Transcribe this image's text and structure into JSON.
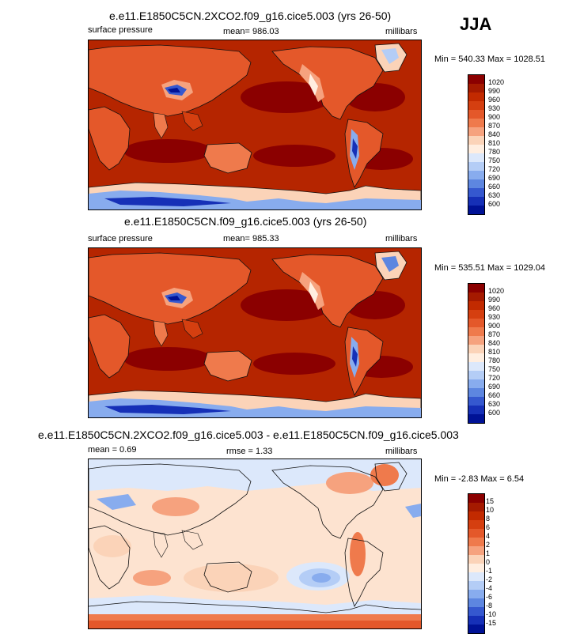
{
  "season": "JJA",
  "panels": [
    {
      "id": "p1",
      "title": "e.e11.E1850C5CN.2XCO2.f09_g16.cice5.003 (yrs 26-50)",
      "left_label": "surface pressure",
      "center_label": "mean= 986.03",
      "right_label": "millibars",
      "minmax": "Min = 540.33 Max = 1028.51",
      "levels": [
        "1020",
        "990",
        "960",
        "930",
        "900",
        "870",
        "840",
        "810",
        "780",
        "750",
        "720",
        "690",
        "660",
        "630",
        "600"
      ]
    },
    {
      "id": "p2",
      "title": "e.e11.E1850C5CN.f09_g16.cice5.003 (yrs 26-50)",
      "left_label": "surface pressure",
      "center_label": "mean= 985.33",
      "right_label": "millibars",
      "minmax": "Min = 535.51 Max = 1029.04",
      "levels": [
        "1020",
        "990",
        "960",
        "930",
        "900",
        "870",
        "840",
        "810",
        "780",
        "750",
        "720",
        "690",
        "660",
        "630",
        "600"
      ]
    },
    {
      "id": "p3",
      "title": "e.e11.E1850C5CN.2XCO2.f09_g16.cice5.003 - e.e11.E1850C5CN.f09_g16.cice5.003",
      "left_label": "mean =   0.69",
      "center_label": "rmse =   1.33",
      "right_label": "millibars",
      "minmax": "Min =  -2.83 Max =   6.54",
      "levels": [
        "15",
        "10",
        "8",
        "6",
        "4",
        "2",
        "1",
        "0",
        "-1",
        "-2",
        "-4",
        "-6",
        "-8",
        "-10",
        "-15"
      ]
    }
  ],
  "colors": {
    "pressure_scale": [
      "#8b0000",
      "#a51a00",
      "#c22a00",
      "#d53f10",
      "#e4582a",
      "#ef7a4c",
      "#f6a27e",
      "#fbd3b8",
      "#ffeee0",
      "#dce8fb",
      "#b4cdf6",
      "#88acee",
      "#5d86e0",
      "#3558cf",
      "#1630b7",
      "#001296"
    ],
    "diff_scale": [
      "#8b0000",
      "#a51a00",
      "#c22a00",
      "#d53f10",
      "#e4582a",
      "#ef7a4c",
      "#f6a27e",
      "#fbd3b8",
      "#ffeee0",
      "#dce8fb",
      "#b4cdf6",
      "#88acee",
      "#5d86e0",
      "#3558cf",
      "#1630b7",
      "#001296"
    ],
    "ocean_p": "#b52500",
    "ocean_high": "#8b0000",
    "ocean_diff": "#fde3d0"
  }
}
